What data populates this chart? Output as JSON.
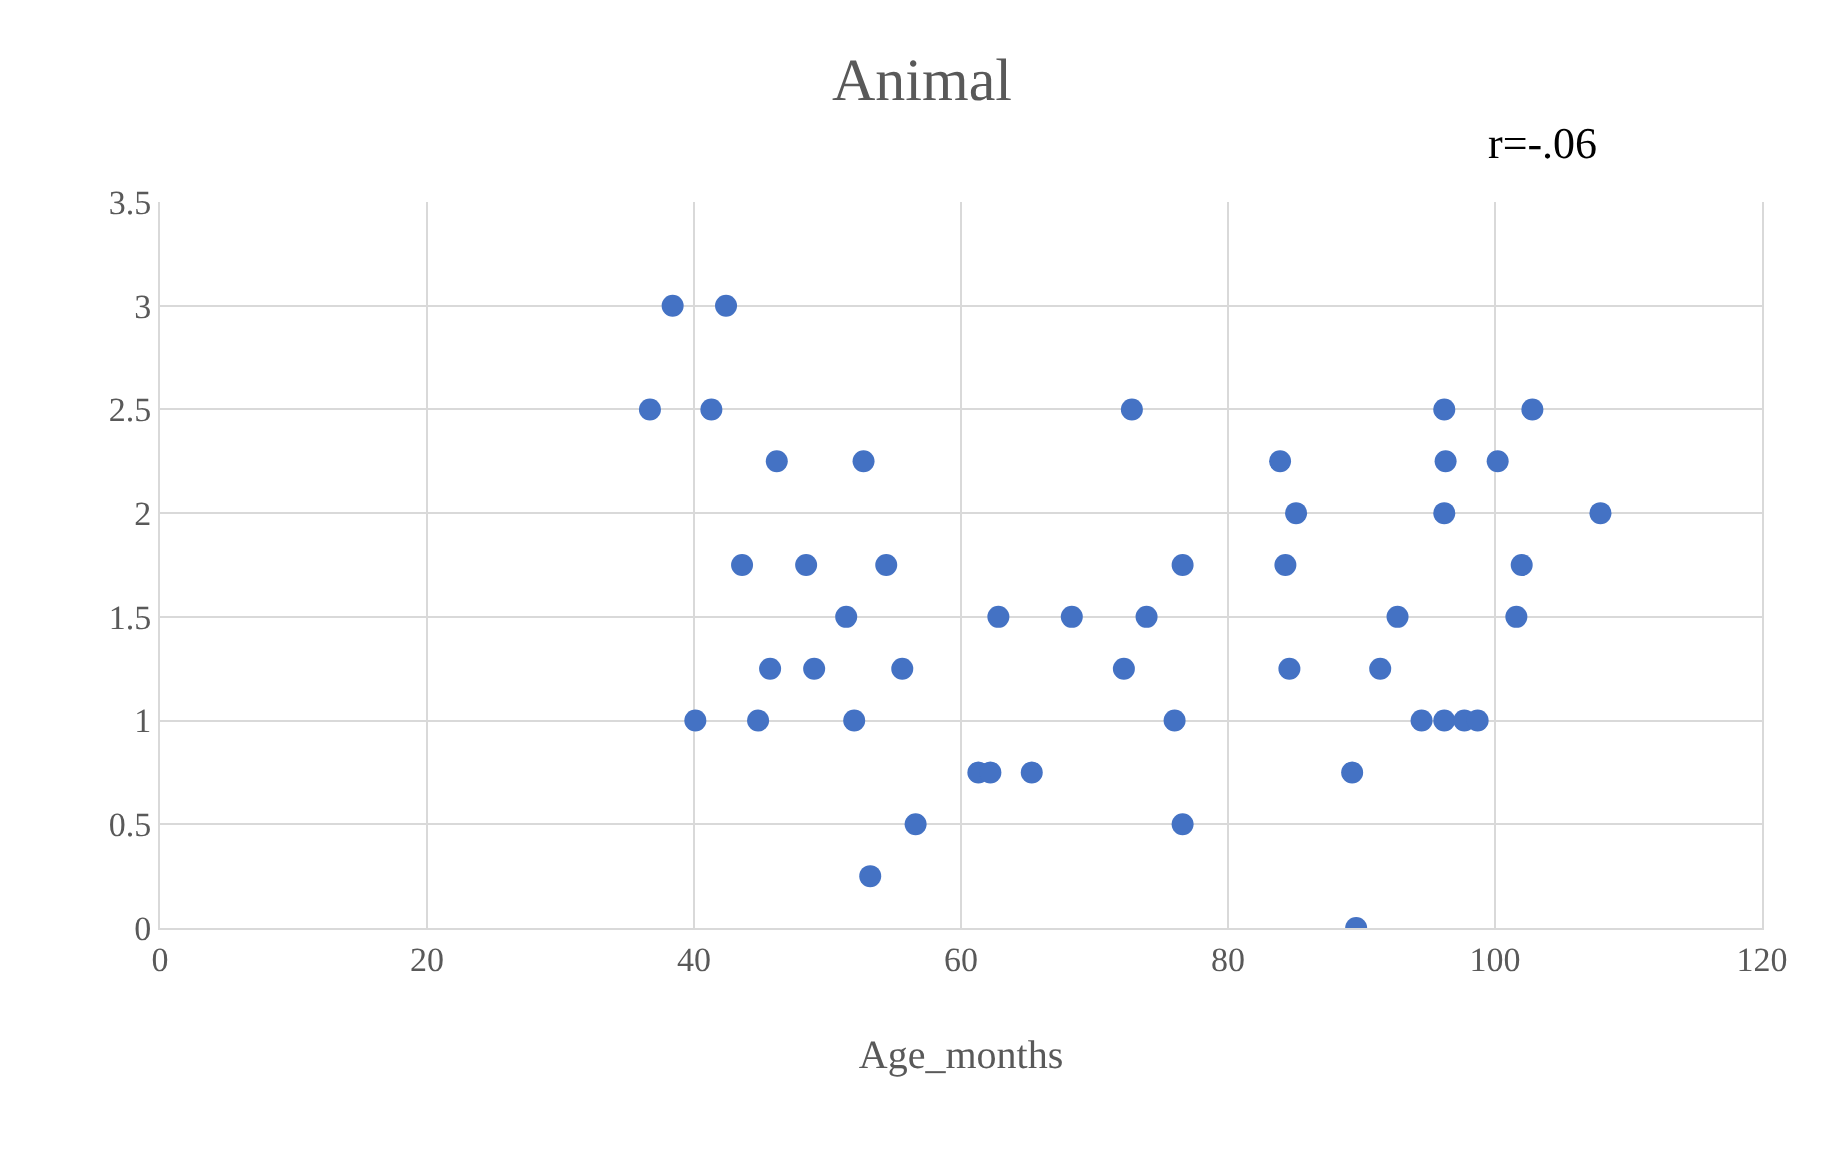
{
  "chart_data": {
    "type": "scatter",
    "title": "Animal",
    "xlabel": "Age_months",
    "annotations": [
      "r=-.06"
    ],
    "x": [
      36.7,
      38.4,
      42.4,
      41.3,
      40.1,
      43.6,
      46.2,
      45.7,
      44.8,
      48.4,
      49.0,
      51.4,
      52.0,
      52.7,
      54.4,
      55.6,
      56.6,
      53.2,
      61.3,
      62.2,
      62.8,
      65.3,
      68.3,
      72.8,
      72.2,
      73.9,
      76.0,
      76.6,
      76.6,
      83.9,
      84.3,
      85.1,
      84.6,
      89.3,
      89.6,
      91.4,
      92.7,
      94.5,
      96.2,
      96.2,
      96.3,
      96.2,
      97.7,
      98.7,
      100.2,
      101.6,
      102.0,
      102.8,
      107.9
    ],
    "values": [
      2.5,
      3,
      3,
      2.5,
      1,
      1.75,
      2.25,
      1.25,
      1,
      1.75,
      1.25,
      1.5,
      1,
      2.25,
      1.75,
      1.25,
      0.5,
      0.25,
      0.75,
      0.75,
      1.5,
      0.75,
      1.5,
      2.5,
      1.25,
      1.5,
      1,
      1.75,
      0.5,
      2.25,
      1.75,
      2,
      1.25,
      0.75,
      0,
      1.25,
      1.5,
      1,
      1,
      2.5,
      2.25,
      2,
      1,
      1,
      2.25,
      1.5,
      1.75,
      2.5,
      2
    ],
    "color": "#4472c4",
    "marker": "circle",
    "xlim": [
      0,
      120
    ],
    "xticks": [
      0,
      20,
      40,
      60,
      80,
      100,
      120
    ],
    "ylim": [
      0,
      3.5
    ],
    "yticks": [
      0,
      0.5,
      1,
      1.5,
      2,
      2.5,
      3,
      3.5
    ],
    "grid": true,
    "legend": false
  }
}
